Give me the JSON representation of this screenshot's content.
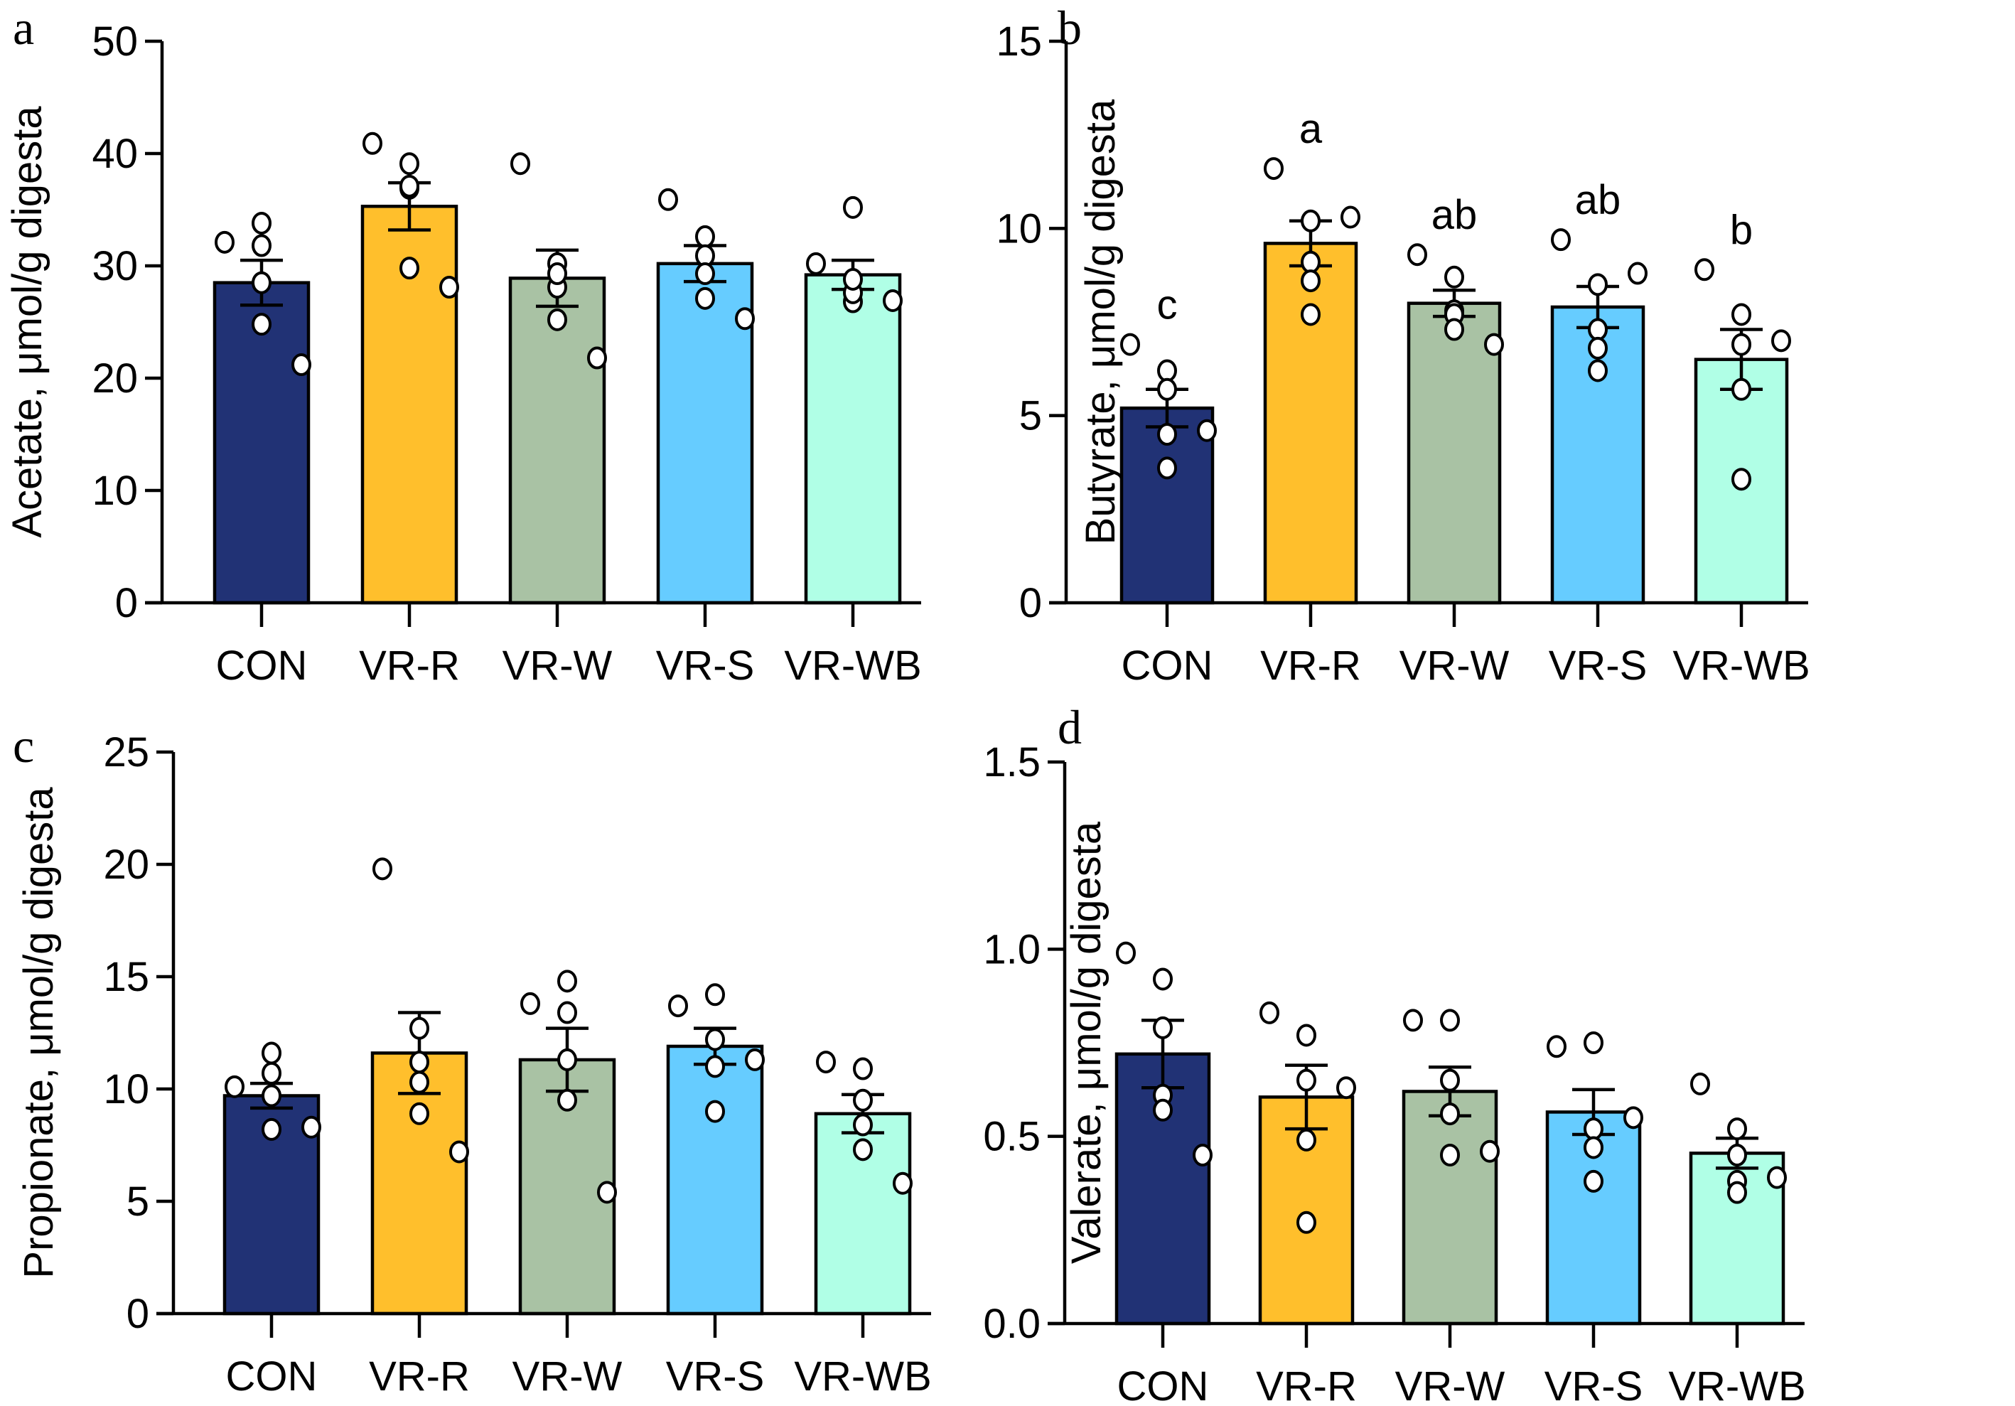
{
  "colors": {
    "CON": "#213275",
    "VR-R": "#FFBF2C",
    "VR-W": "#A9C2A4",
    "VR-S": "#66CCFF",
    "VR-WB": "#B0FFE6",
    "stroke": "#000000",
    "point_fill": "#ffffff"
  },
  "chart_data": [
    {
      "panel": "a",
      "type": "bar",
      "title": "",
      "ylabel": "Acetate, μmol/g digesta",
      "xlabel": "",
      "ylim": [
        0,
        50
      ],
      "yticks": [
        0,
        10,
        20,
        30,
        40,
        50
      ],
      "ytick_labels": [
        "0",
        "10",
        "20",
        "30",
        "40",
        "50"
      ],
      "categories": [
        "CON",
        "VR-R",
        "VR-W",
        "VR-S",
        "VR-WB"
      ],
      "values": [
        28.5,
        35.3,
        28.9,
        30.2,
        29.2
      ],
      "sem": [
        2.0,
        2.1,
        2.5,
        1.6,
        1.3
      ],
      "points": [
        [
          32.1,
          33.8,
          31.8,
          28.5,
          24.8,
          21.2
        ],
        [
          40.9,
          39.1,
          36.9,
          37.1,
          29.8,
          28.1
        ],
        [
          39.1,
          30.2,
          28.1,
          29.3,
          25.2,
          21.8
        ],
        [
          35.9,
          32.6,
          30.9,
          29.3,
          27.1,
          25.3
        ],
        [
          30.2,
          26.8,
          35.2,
          27.6,
          28.8,
          26.9
        ]
      ],
      "significance_letters": [
        "",
        "",
        "",
        "",
        ""
      ]
    },
    {
      "panel": "b",
      "type": "bar",
      "title": "",
      "ylabel": "Butyrate, μmol/g digesta",
      "xlabel": "",
      "ylim": [
        0,
        15
      ],
      "yticks": [
        0,
        5,
        10,
        15
      ],
      "ytick_labels": [
        "0",
        "5",
        "10",
        "15"
      ],
      "categories": [
        "CON",
        "VR-R",
        "VR-W",
        "VR-S",
        "VR-WB"
      ],
      "values": [
        5.2,
        9.6,
        8.0,
        7.9,
        6.5
      ],
      "sem": [
        0.5,
        0.6,
        0.35,
        0.55,
        0.8
      ],
      "points": [
        [
          6.9,
          6.2,
          5.7,
          4.5,
          3.6,
          4.6
        ],
        [
          11.6,
          10.2,
          9.1,
          8.6,
          7.7,
          10.3
        ],
        [
          9.3,
          7.8,
          8.7,
          7.7,
          7.3,
          6.9
        ],
        [
          9.7,
          8.5,
          7.3,
          6.8,
          6.2,
          8.8
        ],
        [
          8.9,
          7.7,
          6.9,
          5.7,
          3.3,
          7.0
        ]
      ],
      "significance_letters": [
        "c",
        "a",
        "ab",
        "ab",
        "b"
      ]
    },
    {
      "panel": "c",
      "type": "bar",
      "title": "",
      "ylabel": "Propionate, μmol/g digesta",
      "xlabel": "",
      "ylim": [
        0,
        25
      ],
      "yticks": [
        0,
        5,
        10,
        15,
        20,
        25
      ],
      "ytick_labels": [
        "0",
        "5",
        "10",
        "15",
        "20",
        "25"
      ],
      "categories": [
        "CON",
        "VR-R",
        "VR-W",
        "VR-S",
        "VR-WB"
      ],
      "values": [
        9.7,
        11.6,
        11.3,
        11.9,
        8.9
      ],
      "sem": [
        0.55,
        1.8,
        1.4,
        0.8,
        0.85
      ],
      "points": [
        [
          10.1,
          11.6,
          8.2,
          10.7,
          9.7,
          8.3
        ],
        [
          19.8,
          12.7,
          11.2,
          10.3,
          8.9,
          7.2
        ],
        [
          13.8,
          14.8,
          13.4,
          11.3,
          9.5,
          5.4
        ],
        [
          13.7,
          12.2,
          11.0,
          9.0,
          14.2,
          11.3
        ],
        [
          11.2,
          10.9,
          9.5,
          8.4,
          7.3,
          5.8
        ]
      ],
      "significance_letters": [
        "",
        "",
        "",
        "",
        ""
      ]
    },
    {
      "panel": "d",
      "type": "bar",
      "title": "",
      "ylabel": "Valerate, μmol/g digesta",
      "xlabel": "",
      "ylim": [
        0,
        1.5
      ],
      "yticks": [
        0.0,
        0.5,
        1.0,
        1.5
      ],
      "ytick_labels": [
        "0.0",
        "0.5",
        "1.0",
        "1.5"
      ],
      "categories": [
        "CON",
        "VR-R",
        "VR-W",
        "VR-S",
        "VR-WB"
      ],
      "values": [
        0.72,
        0.605,
        0.62,
        0.565,
        0.455
      ],
      "sem": [
        0.09,
        0.085,
        0.065,
        0.06,
        0.04
      ],
      "points": [
        [
          0.99,
          0.92,
          0.79,
          0.61,
          0.57,
          0.45
        ],
        [
          0.83,
          0.77,
          0.65,
          0.49,
          0.27,
          0.63
        ],
        [
          0.81,
          0.81,
          0.65,
          0.56,
          0.45,
          0.46
        ],
        [
          0.74,
          0.75,
          0.52,
          0.47,
          0.38,
          0.55
        ],
        [
          0.64,
          0.52,
          0.45,
          0.38,
          0.35,
          0.39
        ]
      ],
      "significance_letters": [
        "",
        "",
        "",
        "",
        ""
      ]
    }
  ]
}
